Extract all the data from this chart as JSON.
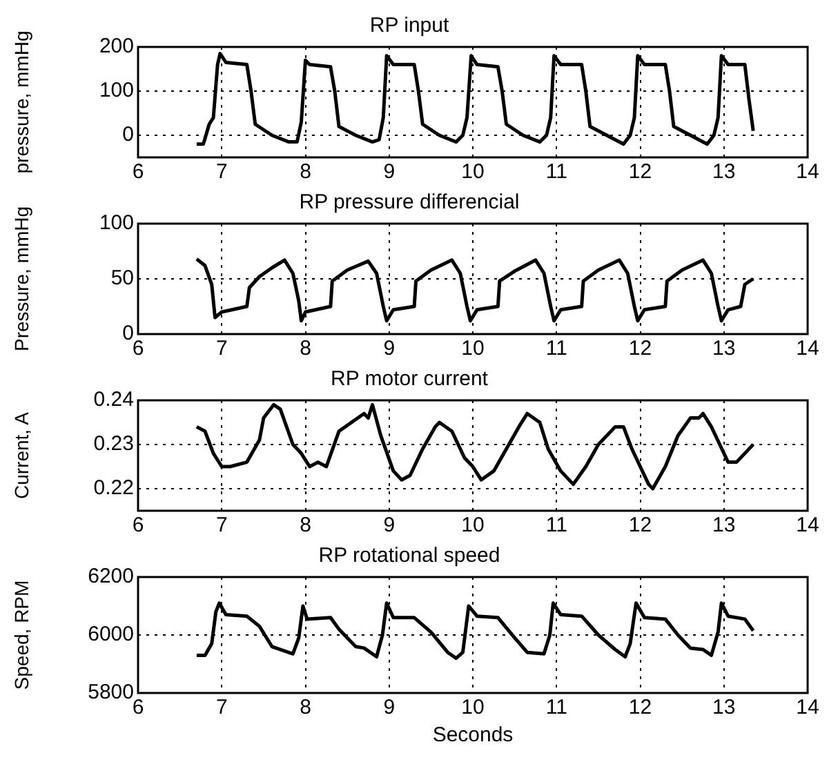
{
  "chart_data": [
    {
      "type": "line",
      "title": "RP input",
      "ylabel": "pressure, mmHg",
      "color": "#000000",
      "grid": true,
      "xlim": [
        6,
        14
      ],
      "xticks": [
        6,
        7,
        8,
        9,
        10,
        11,
        12,
        13,
        14
      ],
      "ylim": [
        -50,
        200
      ],
      "yticks": [
        0,
        100,
        200
      ],
      "x": [
        6.7,
        6.78,
        6.85,
        6.9,
        6.95,
        6.98,
        7.05,
        7.3,
        7.35,
        7.4,
        7.6,
        7.8,
        7.9,
        7.95,
        8.0,
        8.05,
        8.3,
        8.35,
        8.4,
        8.6,
        8.8,
        8.88,
        8.93,
        8.97,
        9.05,
        9.3,
        9.35,
        9.4,
        9.6,
        9.8,
        9.88,
        9.93,
        9.98,
        10.05,
        10.3,
        10.35,
        10.4,
        10.6,
        10.8,
        10.88,
        10.93,
        10.97,
        11.05,
        11.3,
        11.35,
        11.4,
        11.6,
        11.8,
        11.88,
        11.93,
        11.97,
        12.05,
        12.3,
        12.35,
        12.4,
        12.6,
        12.8,
        12.88,
        12.93,
        12.97,
        13.05,
        13.25,
        13.3,
        13.35
      ],
      "values": [
        -20,
        -20,
        25,
        40,
        160,
        185,
        165,
        160,
        100,
        25,
        0,
        -15,
        -15,
        30,
        170,
        160,
        155,
        100,
        20,
        0,
        -15,
        -10,
        40,
        180,
        160,
        160,
        100,
        25,
        0,
        -15,
        0,
        40,
        180,
        160,
        155,
        100,
        25,
        0,
        -15,
        0,
        40,
        180,
        160,
        160,
        100,
        20,
        0,
        -20,
        0,
        40,
        180,
        160,
        160,
        100,
        20,
        0,
        -20,
        0,
        40,
        180,
        160,
        160,
        80,
        10
      ]
    },
    {
      "type": "line",
      "title": "RP pressure differencial",
      "ylabel": "Pressure, mmHg",
      "color": "#000000",
      "grid": true,
      "xlim": [
        6,
        14
      ],
      "xticks": [
        6,
        7,
        8,
        9,
        10,
        11,
        12,
        13,
        14
      ],
      "ylim": [
        0,
        100
      ],
      "yticks": [
        0,
        50,
        100
      ],
      "x": [
        6.7,
        6.8,
        6.88,
        6.92,
        7.0,
        7.3,
        7.33,
        7.45,
        7.6,
        7.75,
        7.85,
        7.92,
        7.95,
        8.0,
        8.3,
        8.32,
        8.5,
        8.75,
        8.85,
        8.93,
        8.97,
        9.05,
        9.3,
        9.32,
        9.5,
        9.75,
        9.85,
        9.93,
        9.97,
        10.05,
        10.3,
        10.32,
        10.5,
        10.75,
        10.85,
        10.93,
        10.97,
        11.05,
        11.3,
        11.32,
        11.5,
        11.75,
        11.85,
        11.93,
        11.97,
        12.05,
        12.3,
        12.32,
        12.5,
        12.75,
        12.85,
        12.93,
        12.97,
        13.05,
        13.2,
        13.25,
        13.35
      ],
      "values": [
        68,
        62,
        45,
        15,
        20,
        25,
        42,
        52,
        60,
        67,
        55,
        30,
        12,
        20,
        25,
        48,
        58,
        66,
        55,
        25,
        12,
        22,
        25,
        48,
        58,
        67,
        55,
        25,
        12,
        22,
        25,
        48,
        57,
        67,
        55,
        25,
        12,
        22,
        25,
        48,
        58,
        67,
        55,
        25,
        12,
        22,
        25,
        48,
        58,
        67,
        55,
        25,
        12,
        22,
        25,
        45,
        50
      ]
    },
    {
      "type": "line",
      "title": "RP motor current",
      "ylabel": "Current, A",
      "color": "#000000",
      "grid": true,
      "xlim": [
        6,
        14
      ],
      "xticks": [
        6,
        7,
        8,
        9,
        10,
        11,
        12,
        13,
        14
      ],
      "ylim": [
        0.215,
        0.24
      ],
      "yticks": [
        0.22,
        0.23,
        0.24
      ],
      "x": [
        6.7,
        6.8,
        6.9,
        7.0,
        7.1,
        7.3,
        7.45,
        7.5,
        7.62,
        7.7,
        7.85,
        7.95,
        8.05,
        8.15,
        8.25,
        8.4,
        8.55,
        8.7,
        8.75,
        8.8,
        8.9,
        9.05,
        9.15,
        9.25,
        9.4,
        9.55,
        9.6,
        9.75,
        9.9,
        10.0,
        10.1,
        10.25,
        10.4,
        10.55,
        10.65,
        10.8,
        10.9,
        11.05,
        11.2,
        11.35,
        11.5,
        11.7,
        11.8,
        11.9,
        12.0,
        12.1,
        12.15,
        12.3,
        12.45,
        12.6,
        12.7,
        12.75,
        12.85,
        12.95,
        13.05,
        13.15,
        13.3,
        13.35
      ],
      "values": [
        0.234,
        0.233,
        0.228,
        0.225,
        0.225,
        0.226,
        0.231,
        0.236,
        0.239,
        0.238,
        0.23,
        0.228,
        0.225,
        0.226,
        0.225,
        0.233,
        0.235,
        0.237,
        0.236,
        0.239,
        0.232,
        0.224,
        0.222,
        0.223,
        0.229,
        0.234,
        0.235,
        0.233,
        0.227,
        0.225,
        0.222,
        0.224,
        0.229,
        0.234,
        0.237,
        0.235,
        0.229,
        0.224,
        0.221,
        0.225,
        0.23,
        0.234,
        0.234,
        0.229,
        0.225,
        0.221,
        0.22,
        0.225,
        0.232,
        0.236,
        0.236,
        0.237,
        0.234,
        0.23,
        0.226,
        0.226,
        0.229,
        0.23
      ]
    },
    {
      "type": "line",
      "title": "RP rotational speed",
      "ylabel": "Speed, RPM",
      "xlabel": "Seconds",
      "color": "#000000",
      "grid": true,
      "xlim": [
        6,
        14
      ],
      "xticks": [
        6,
        7,
        8,
        9,
        10,
        11,
        12,
        13,
        14
      ],
      "ylim": [
        5800,
        6200
      ],
      "yticks": [
        5800,
        6000,
        6200
      ],
      "x": [
        6.7,
        6.8,
        6.88,
        6.93,
        6.97,
        7.05,
        7.3,
        7.45,
        7.6,
        7.75,
        7.85,
        7.92,
        7.97,
        8.02,
        8.3,
        8.4,
        8.6,
        8.7,
        8.85,
        8.92,
        8.97,
        9.05,
        9.3,
        9.5,
        9.7,
        9.8,
        9.88,
        9.95,
        10.05,
        10.3,
        10.5,
        10.65,
        10.85,
        10.92,
        10.96,
        11.05,
        11.3,
        11.5,
        11.7,
        11.82,
        11.88,
        11.95,
        12.05,
        12.3,
        12.45,
        12.6,
        12.75,
        12.85,
        12.93,
        12.97,
        13.05,
        13.25,
        13.35
      ],
      "values": [
        5930,
        5930,
        5970,
        6080,
        6110,
        6070,
        6065,
        6030,
        5960,
        5945,
        5935,
        5990,
        6100,
        6055,
        6060,
        6020,
        5960,
        5955,
        5925,
        6000,
        6110,
        6060,
        6060,
        6010,
        5940,
        5920,
        5940,
        6100,
        6065,
        6060,
        5990,
        5940,
        5935,
        6000,
        6110,
        6070,
        6065,
        6000,
        5950,
        5925,
        5970,
        6110,
        6060,
        6055,
        6000,
        5955,
        5950,
        5930,
        6010,
        6110,
        6065,
        6055,
        6015
      ]
    }
  ]
}
